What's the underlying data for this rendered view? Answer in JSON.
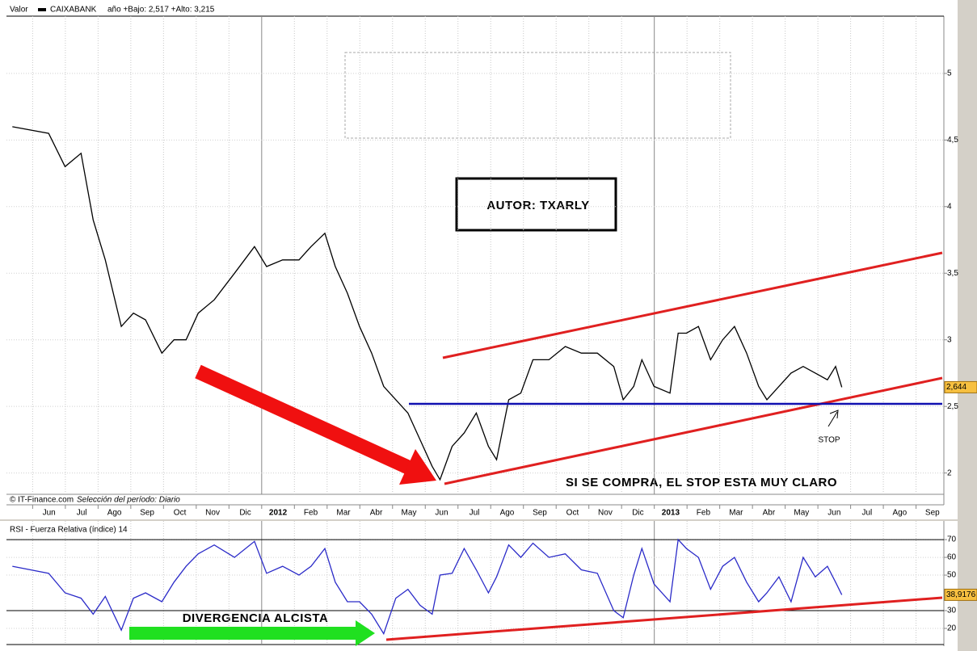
{
  "chart_data": [
    {
      "type": "line",
      "header_label": "Valor",
      "subtitle": "año +Bajo: 2,517 +Alto: 3,215",
      "source": "© IT-Finance.com",
      "period": "Selección del período: Diario",
      "annotations": [
        "AUTOR: TXARLY",
        "SI SE COMPRA, EL STOP ESTA MUY CLARO",
        "STOP"
      ],
      "x": [
        -0.62,
        0.49,
        0.99,
        1.48,
        1.85,
        2.22,
        2.71,
        3.08,
        3.45,
        3.95,
        4.32,
        4.69,
        5.06,
        5.55,
        6.17,
        6.78,
        7.15,
        7.64,
        8.14,
        8.51,
        8.93,
        9.25,
        9.62,
        9.99,
        10.36,
        10.73,
        11.1,
        11.47,
        11.84,
        12.21,
        12.45,
        12.82,
        13.19,
        13.56,
        13.93,
        14.18,
        14.55,
        14.92,
        15.29,
        15.78,
        16.28,
        16.77,
        17.26,
        17.76,
        18.05,
        18.37,
        18.62,
        18.99,
        19.48,
        19.73,
        19.98,
        20.35,
        20.72,
        21.09,
        21.45,
        21.82,
        22.19,
        22.44,
        22.81,
        23.18,
        23.55,
        23.92,
        24.29,
        24.54,
        24.73
      ],
      "series": [
        {
          "name": "CAIXABANK",
          "color": "#000000",
          "values": [
            4.6,
            4.55,
            4.3,
            4.4,
            3.9,
            3.6,
            3.1,
            3.2,
            3.15,
            2.9,
            3.0,
            3.0,
            3.2,
            3.3,
            3.5,
            3.7,
            3.55,
            3.6,
            3.6,
            3.7,
            3.8,
            3.55,
            3.35,
            3.1,
            2.9,
            2.65,
            2.55,
            2.45,
            2.25,
            2.05,
            1.95,
            2.2,
            2.3,
            2.45,
            2.2,
            2.1,
            2.55,
            2.6,
            2.85,
            2.85,
            2.95,
            2.9,
            2.9,
            2.8,
            2.55,
            2.65,
            2.85,
            2.65,
            2.6,
            3.05,
            3.05,
            3.1,
            2.85,
            3.0,
            3.1,
            2.9,
            2.65,
            2.55,
            2.65,
            2.75,
            2.8,
            2.75,
            2.7,
            2.8,
            2.644
          ]
        }
      ],
      "last_value": {
        "value": 2.644,
        "label": "2,644"
      },
      "xlim": [
        -0.8,
        27.85
      ],
      "ylim": [
        1.84,
        5.43
      ],
      "xticks": [
        {
          "value": 0,
          "label": "Jun"
        },
        {
          "value": 1,
          "label": "Jul"
        },
        {
          "value": 2,
          "label": "Ago"
        },
        {
          "value": 3,
          "label": "Sep"
        },
        {
          "value": 4,
          "label": "Oct"
        },
        {
          "value": 5,
          "label": "Nov"
        },
        {
          "value": 6,
          "label": "Dic"
        },
        {
          "value": 7,
          "label": "2012"
        },
        {
          "value": 8,
          "label": "Feb"
        },
        {
          "value": 9,
          "label": "Mar"
        },
        {
          "value": 10,
          "label": "Abr"
        },
        {
          "value": 11,
          "label": "May"
        },
        {
          "value": 12,
          "label": "Jun"
        },
        {
          "value": 13,
          "label": "Jul"
        },
        {
          "value": 14,
          "label": "Ago"
        },
        {
          "value": 15,
          "label": "Sep"
        },
        {
          "value": 16,
          "label": "Oct"
        },
        {
          "value": 17,
          "label": "Nov"
        },
        {
          "value": 18,
          "label": "Dic"
        },
        {
          "value": 19,
          "label": "2013"
        },
        {
          "value": 20,
          "label": "Feb"
        },
        {
          "value": 21,
          "label": "Mar"
        },
        {
          "value": 22,
          "label": "Abr"
        },
        {
          "value": 23,
          "label": "May"
        },
        {
          "value": 24,
          "label": "Jun"
        },
        {
          "value": 25,
          "label": "Jul"
        },
        {
          "value": 26,
          "label": "Ago"
        },
        {
          "value": 27,
          "label": "Sep"
        }
      ],
      "yticks": [
        2,
        {
          "value": 2.5,
          "label": "2,5"
        },
        3,
        {
          "value": 3.5,
          "label": "3,5"
        },
        4,
        {
          "value": 4.5,
          "label": "4,5"
        },
        5
      ],
      "grid": true
    },
    {
      "type": "line",
      "title": "RSI - Fuerza Relativa (índice) 14",
      "annotations": [
        "DIVERGENCIA ALCISTA"
      ],
      "x": [
        -0.62,
        0.49,
        0.99,
        1.48,
        1.85,
        2.22,
        2.71,
        3.08,
        3.45,
        3.95,
        4.32,
        4.69,
        5.06,
        5.55,
        6.17,
        6.78,
        7.15,
        7.64,
        8.14,
        8.51,
        8.93,
        9.25,
        9.62,
        9.99,
        10.36,
        10.73,
        11.1,
        11.47,
        11.84,
        12.21,
        12.45,
        12.82,
        13.19,
        13.56,
        13.93,
        14.18,
        14.55,
        14.92,
        15.29,
        15.78,
        16.28,
        16.77,
        17.26,
        17.76,
        18.05,
        18.37,
        18.62,
        18.99,
        19.48,
        19.73,
        19.98,
        20.35,
        20.72,
        21.09,
        21.45,
        21.82,
        22.19,
        22.44,
        22.81,
        23.18,
        23.55,
        23.92,
        24.29,
        24.54,
        24.73
      ],
      "series": [
        {
          "color": "#2a2ac8",
          "values": [
            55,
            51,
            40,
            37,
            28,
            38,
            19,
            37,
            40,
            35,
            46,
            55,
            62,
            67,
            60,
            69,
            51,
            55,
            50,
            55,
            65,
            46,
            35,
            35,
            28,
            17,
            37,
            42,
            33,
            28,
            50,
            51,
            65,
            53,
            40,
            49,
            67,
            60,
            68,
            60,
            62,
            53,
            51,
            30,
            26,
            50,
            65,
            45,
            35,
            70,
            65,
            60,
            42,
            55,
            60,
            46,
            35,
            40,
            49,
            35,
            60,
            49,
            55,
            46,
            38.9176
          ]
        }
      ],
      "last_value": {
        "value": 38.9176,
        "label": "38,9176"
      },
      "levels": [
        30,
        70
      ],
      "xlim": [
        -0.8,
        27.85
      ],
      "ylim": [
        10.9,
        80.5
      ],
      "yticks": [
        20,
        30,
        50,
        60,
        70
      ],
      "grid": true
    }
  ]
}
